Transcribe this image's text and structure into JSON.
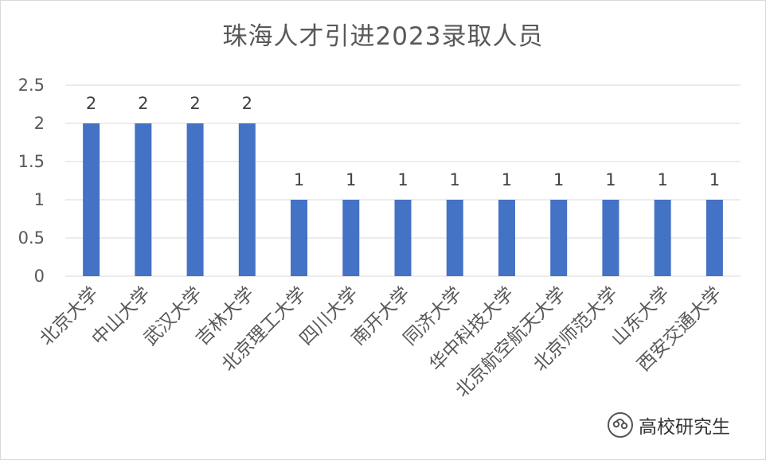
{
  "chart_data": {
    "type": "bar",
    "title": "珠海人才引进2023录取人员",
    "categories": [
      "北京大学",
      "中山大学",
      "武汉大学",
      "吉林大学",
      "北京理工大学",
      "四川大学",
      "南开大学",
      "同济大学",
      "华中科技大学",
      "北京航空航天大学",
      "北京师范大学",
      "山东大学",
      "西安交通大学"
    ],
    "values": [
      2,
      2,
      2,
      2,
      1,
      1,
      1,
      1,
      1,
      1,
      1,
      1,
      1
    ],
    "ylim": [
      0,
      2.5
    ],
    "yticks": [
      "0",
      "0.5",
      "1",
      "1.5",
      "2",
      "2.5"
    ],
    "xlabel": "",
    "ylabel": "",
    "grid": true,
    "data_labels": true,
    "bar_color": "#4472c4"
  },
  "watermark": {
    "icon": "wechat-official-account-icon",
    "text": "高校研究生"
  }
}
